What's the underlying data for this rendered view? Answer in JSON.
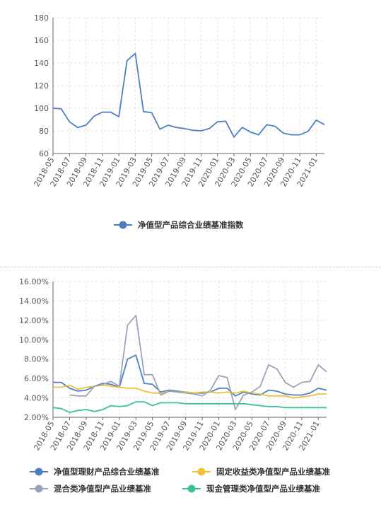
{
  "chart_data": [
    {
      "type": "line",
      "x": [
        "2018-05",
        "2018-06",
        "2018-07",
        "2018-08",
        "2018-09",
        "2018-10",
        "2018-11",
        "2018-12",
        "2019-01",
        "2019-02",
        "2019-03",
        "2019-04",
        "2019-05",
        "2019-06",
        "2019-07",
        "2019-08",
        "2019-09",
        "2019-10",
        "2019-11",
        "2019-12",
        "2020-01",
        "2020-02",
        "2020-03",
        "2020-04",
        "2020-05",
        "2020-06",
        "2020-07",
        "2020-08",
        "2020-09",
        "2020-10",
        "2020-11",
        "2020-12",
        "2021-01",
        "2021-02"
      ],
      "x_tick_labels": [
        "2018-05",
        "2018-07",
        "2018-09",
        "2018-11",
        "2019-01",
        "2019-03",
        "2019-05",
        "2019-07",
        "2019-09",
        "2019-11",
        "2020-01",
        "2020-03",
        "2020-05",
        "2020-07",
        "2020-09",
        "2020-11",
        "2021-01"
      ],
      "y_tick_labels": [
        "60",
        "80",
        "100",
        "120",
        "140",
        "160",
        "180"
      ],
      "ylim": [
        60,
        180
      ],
      "grid": true,
      "legend_position": "bottom-center",
      "series": [
        {
          "name": "净值型产品综合业绩基准指数",
          "color": "#4e7fc4",
          "values": [
            100,
            99.5,
            88,
            83,
            85,
            93,
            96.5,
            96.5,
            92.5,
            142,
            148.5,
            97,
            96,
            81.5,
            85,
            83,
            82,
            80.5,
            80,
            82,
            88,
            88.5,
            74.5,
            83,
            79,
            76.5,
            85.5,
            84,
            78,
            76.5,
            76.5,
            79.5,
            89.5,
            85.5
          ]
        }
      ]
    },
    {
      "type": "line",
      "x": [
        "2018-05",
        "2018-06",
        "2018-07",
        "2018-08",
        "2018-09",
        "2018-10",
        "2018-11",
        "2018-12",
        "2019-01",
        "2019-02",
        "2019-03",
        "2019-04",
        "2019-05",
        "2019-06",
        "2019-07",
        "2019-08",
        "2019-09",
        "2019-10",
        "2019-11",
        "2019-12",
        "2020-01",
        "2020-02",
        "2020-03",
        "2020-04",
        "2020-05",
        "2020-06",
        "2020-07",
        "2020-08",
        "2020-09",
        "2020-10",
        "2020-11",
        "2020-12",
        "2021-01",
        "2021-02"
      ],
      "x_tick_labels": [
        "2018-05",
        "2018-07",
        "2018-09",
        "2018-11",
        "2019-01",
        "2019-03",
        "2019-05",
        "2019-07",
        "2019-09",
        "2019-11",
        "2020-01",
        "2020-03",
        "2020-05",
        "2020-07",
        "2020-09",
        "2020-11",
        "2021-01"
      ],
      "y_tick_labels": [
        "2.00%",
        "4.00%",
        "6.00%",
        "8.00%",
        "10.00%",
        "12.00%",
        "14.00%",
        "16.00%"
      ],
      "ylim": [
        2,
        16
      ],
      "grid": true,
      "legend_position": "bottom",
      "series": [
        {
          "name": "净值型理财产品综合业绩基准",
          "color": "#4e7fc4",
          "values": [
            5.6,
            5.6,
            5.0,
            4.7,
            4.8,
            5.2,
            5.5,
            5.4,
            5.1,
            8.0,
            8.4,
            5.5,
            5.4,
            4.6,
            4.8,
            4.7,
            4.6,
            4.5,
            4.5,
            4.6,
            5.0,
            5.0,
            4.2,
            4.6,
            4.4,
            4.3,
            4.8,
            4.7,
            4.4,
            4.3,
            4.3,
            4.5,
            5.0,
            4.8
          ]
        },
        {
          "name": "固定收益类净值型产品业绩基准",
          "color": "#f0c23a",
          "values": [
            5.1,
            5.1,
            5.3,
            4.9,
            5.1,
            5.2,
            5.3,
            5.2,
            5.1,
            5.0,
            5.0,
            4.7,
            4.5,
            4.5,
            4.7,
            4.6,
            4.6,
            4.5,
            4.6,
            4.6,
            4.5,
            4.6,
            4.5,
            4.7,
            4.5,
            4.4,
            4.2,
            4.2,
            4.2,
            4.0,
            4.1,
            4.2,
            4.4,
            4.4
          ]
        },
        {
          "name": "混合类净值型产品业绩基准",
          "color": "#9aa3b8",
          "values": [
            null,
            null,
            4.3,
            4.2,
            4.2,
            5.2,
            5.4,
            5.7,
            5.2,
            11.5,
            12.5,
            6.4,
            6.4,
            4.3,
            4.7,
            4.6,
            4.5,
            4.4,
            4.2,
            4.8,
            6.3,
            6.1,
            2.8,
            4.3,
            4.6,
            5.2,
            7.4,
            7.0,
            5.6,
            5.1,
            5.6,
            5.7,
            7.4,
            6.7
          ]
        },
        {
          "name": "现金管理类净值型产品业绩基准",
          "color": "#3cc394",
          "values": [
            3.0,
            2.9,
            2.5,
            2.7,
            2.8,
            2.6,
            2.8,
            3.2,
            3.1,
            3.2,
            3.6,
            3.6,
            3.2,
            3.5,
            3.5,
            3.5,
            3.4,
            3.4,
            3.4,
            3.4,
            3.4,
            3.4,
            3.4,
            3.4,
            3.3,
            3.2,
            3.1,
            3.1,
            3.0,
            3.0,
            3.0,
            3.0,
            3.0,
            3.0
          ]
        }
      ]
    }
  ]
}
